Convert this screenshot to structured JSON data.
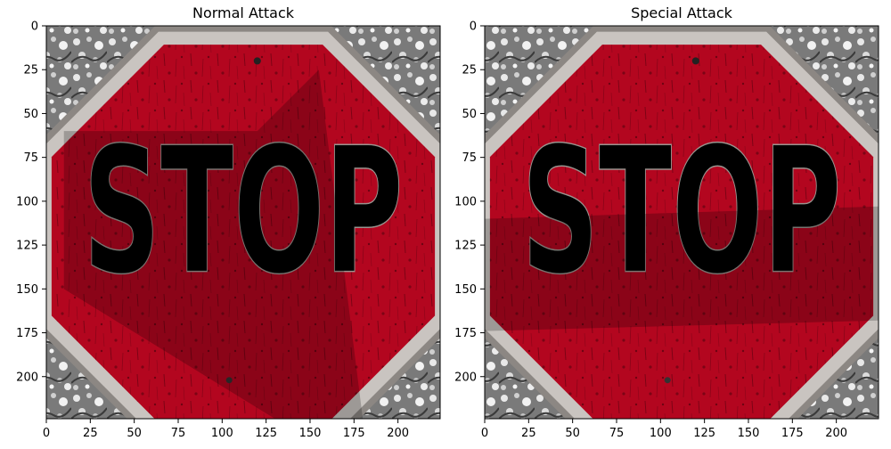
{
  "panels": [
    {
      "title": "Normal Attack",
      "sign_text": "STOP",
      "shadow": "diagonal",
      "x_ticks": [
        "0",
        "25",
        "50",
        "75",
        "100",
        "125",
        "150",
        "175",
        "200"
      ],
      "y_ticks": [
        "0",
        "25",
        "50",
        "75",
        "100",
        "125",
        "150",
        "175",
        "200"
      ]
    },
    {
      "title": "Special Attack",
      "sign_text": "STOP",
      "shadow": "horizontal",
      "x_ticks": [
        "0",
        "25",
        "50",
        "75",
        "100",
        "125",
        "150",
        "175",
        "200"
      ],
      "y_ticks": [
        "0",
        "25",
        "50",
        "75",
        "100",
        "125",
        "150",
        "175",
        "200"
      ]
    }
  ],
  "image_extent": [
    0,
    224
  ],
  "colors": {
    "sign_red": "#b3061f",
    "sign_red_dark": "#7d0417",
    "border_gray": "#c9c4c0",
    "letter_gray": "#d2cdca",
    "background_gray": "#8a8a8a",
    "shadow": "#000000"
  }
}
